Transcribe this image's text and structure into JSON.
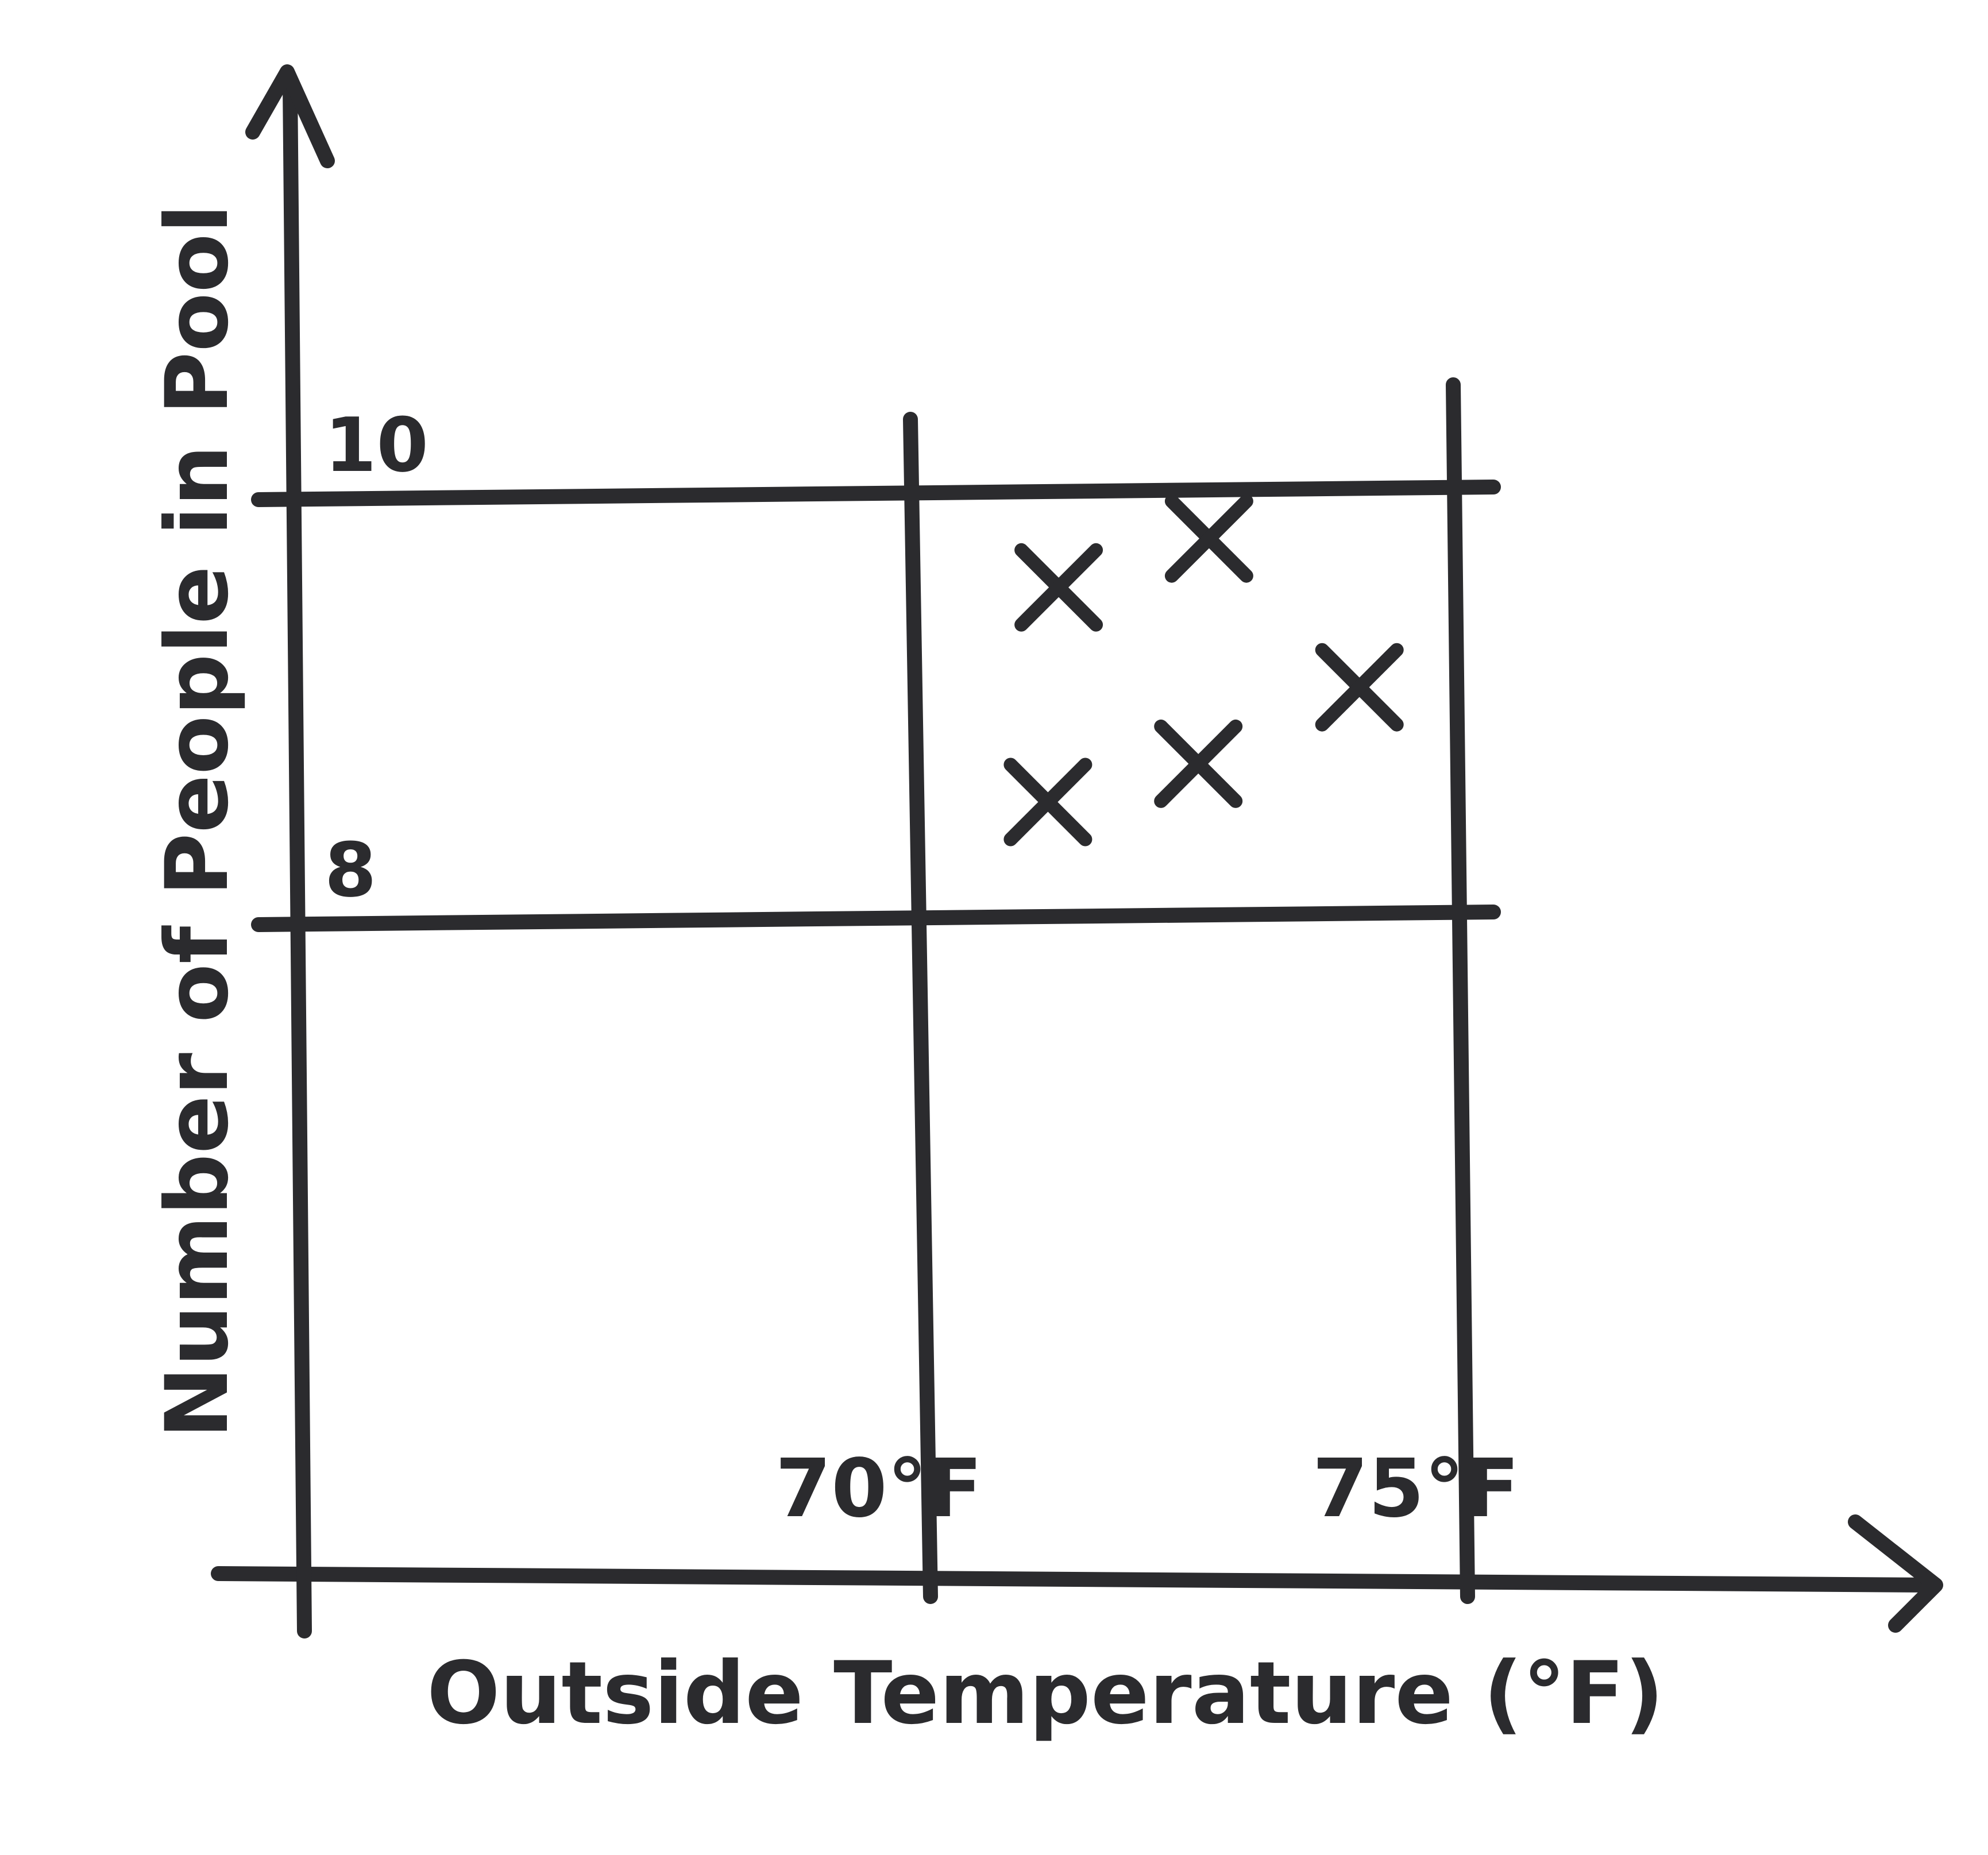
{
  "chart_data": {
    "type": "scatter",
    "xlabel": "Outside Temperature (°F)",
    "ylabel": "Number of People in Pool",
    "x_ticks": [
      {
        "value": 70,
        "label": "70°F"
      },
      {
        "value": 75,
        "label": "75°F"
      }
    ],
    "y_ticks": [
      {
        "value": 8,
        "label": "8"
      },
      {
        "value": 10,
        "label": "10"
      }
    ],
    "grid": true,
    "marker": "x",
    "ink_color": "#2b2b2e",
    "background": "#ffffff",
    "points": [
      {
        "x": 71.2,
        "y": 8.55
      },
      {
        "x": 71.3,
        "y": 9.56
      },
      {
        "x": 72.6,
        "y": 8.73
      },
      {
        "x": 72.7,
        "y": 9.79
      },
      {
        "x": 74.1,
        "y": 9.09
      }
    ]
  }
}
